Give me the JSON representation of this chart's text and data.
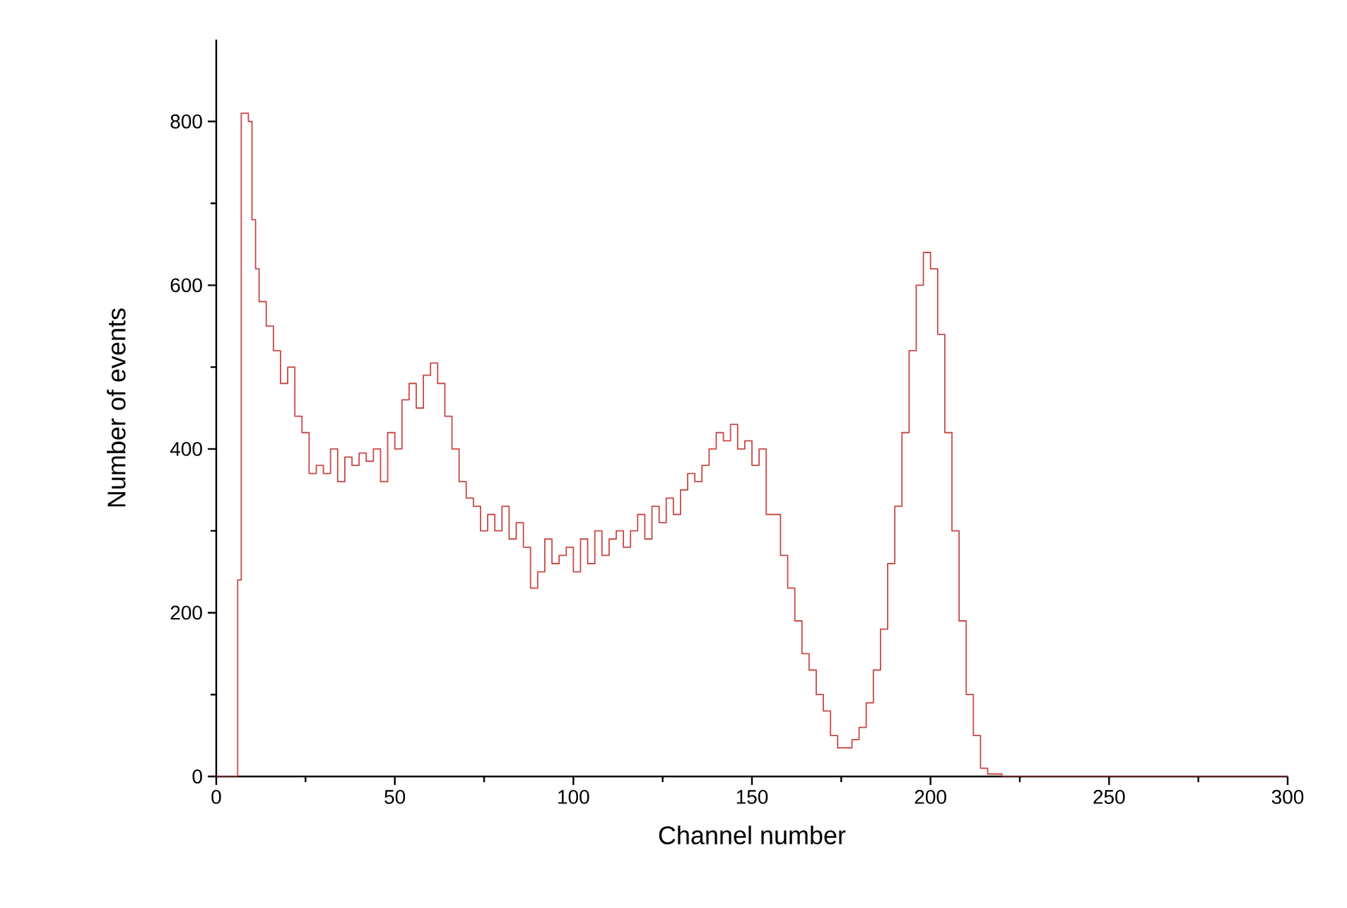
{
  "chart_data": {
    "type": "step",
    "xlabel": "Channel number",
    "ylabel": "Number of events",
    "xlim": [
      0,
      300
    ],
    "ylim": [
      0,
      900
    ],
    "xticks": [
      0,
      50,
      100,
      150,
      200,
      250,
      300
    ],
    "yticks": [
      0,
      200,
      400,
      600,
      800
    ],
    "series": [
      {
        "color": "#c84848",
        "x": [
          0,
          6,
          7,
          9,
          10,
          11,
          12,
          14,
          16,
          18,
          20,
          22,
          24,
          26,
          28,
          30,
          32,
          34,
          36,
          38,
          40,
          42,
          44,
          46,
          48,
          50,
          52,
          54,
          56,
          58,
          60,
          62,
          64,
          66,
          68,
          70,
          72,
          74,
          76,
          78,
          80,
          82,
          84,
          86,
          88,
          90,
          92,
          94,
          96,
          98,
          100,
          102,
          104,
          106,
          108,
          110,
          112,
          114,
          116,
          118,
          120,
          122,
          124,
          126,
          128,
          130,
          132,
          134,
          136,
          138,
          140,
          142,
          144,
          146,
          148,
          150,
          152,
          154,
          156,
          158,
          160,
          162,
          164,
          166,
          168,
          170,
          172,
          174,
          176,
          178,
          180,
          182,
          184,
          186,
          188,
          190,
          192,
          194,
          196,
          198,
          200,
          202,
          204,
          206,
          208,
          210,
          212,
          214,
          216,
          220,
          300
        ],
        "values": [
          0,
          240,
          810,
          800,
          680,
          620,
          580,
          550,
          520,
          480,
          500,
          440,
          420,
          370,
          380,
          370,
          400,
          360,
          390,
          380,
          395,
          385,
          400,
          360,
          420,
          400,
          460,
          480,
          450,
          490,
          505,
          480,
          440,
          400,
          360,
          340,
          330,
          300,
          320,
          300,
          330,
          290,
          310,
          280,
          230,
          250,
          290,
          260,
          270,
          280,
          250,
          290,
          260,
          300,
          270,
          290,
          300,
          280,
          300,
          320,
          290,
          330,
          310,
          340,
          320,
          350,
          370,
          360,
          380,
          400,
          420,
          410,
          430,
          400,
          410,
          380,
          400,
          320,
          320,
          270,
          230,
          190,
          150,
          130,
          100,
          80,
          50,
          35,
          35,
          45,
          60,
          90,
          130,
          180,
          260,
          330,
          420,
          520,
          600,
          640,
          620,
          540,
          420,
          300,
          190,
          100,
          50,
          10,
          3,
          0,
          0
        ]
      }
    ]
  }
}
